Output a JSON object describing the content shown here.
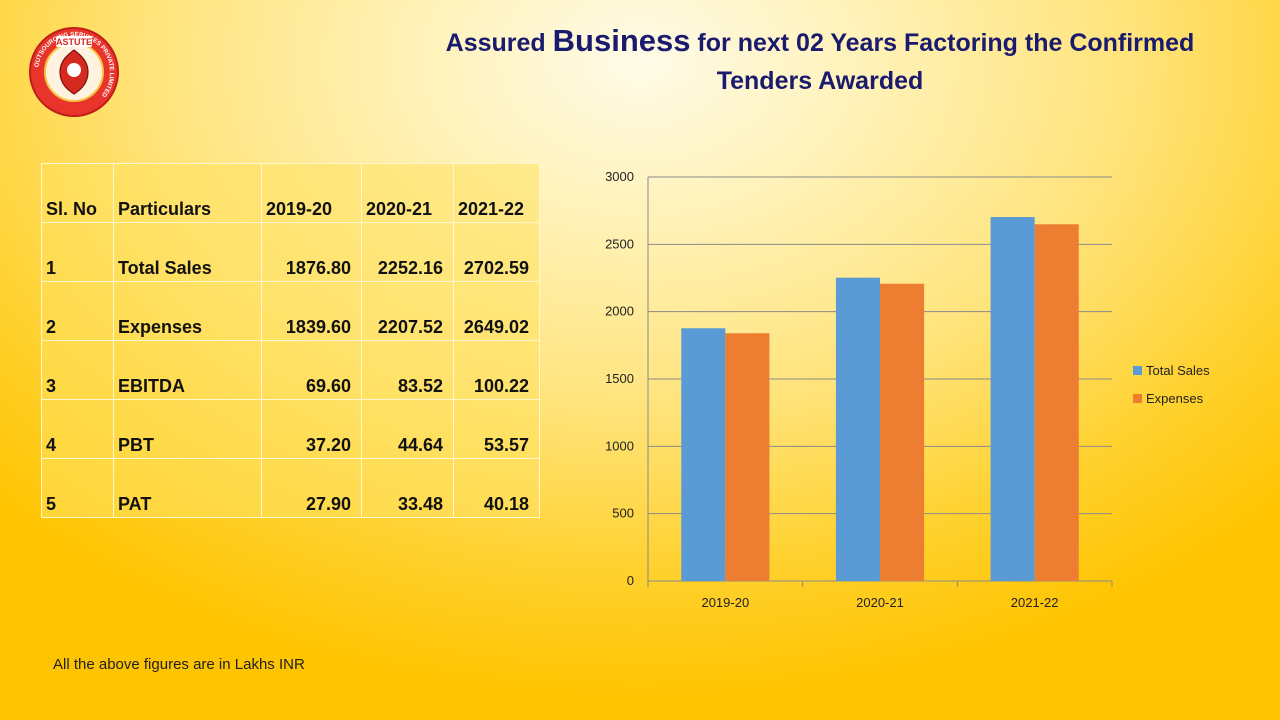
{
  "slide": {
    "title_pre": "Assured ",
    "title_big": "Business",
    "title_post": " for next 02 Years Factoring the Confirmed",
    "title_line2": "Tenders Awarded",
    "logo_text": "ASTUTE",
    "logo_ring_text": "OUTSOURCING SERVICES PRIVATE LIMITED",
    "footnote": "All the above figures are in Lakhs INR"
  },
  "table": {
    "headers": [
      "Sl. No",
      "Particulars",
      "2019-20",
      "2020-21",
      "2021-22"
    ],
    "rows": [
      [
        "1",
        "Total  Sales",
        "1876.80",
        "2252.16",
        "2702.59"
      ],
      [
        "2",
        "Expenses",
        "1839.60",
        "2207.52",
        "2649.02"
      ],
      [
        "3",
        "EBITDA",
        "69.60",
        "83.52",
        "100.22"
      ],
      [
        "4",
        "PBT",
        "37.20",
        "44.64",
        "53.57"
      ],
      [
        "5",
        "PAT",
        "27.90",
        "33.48",
        "40.18"
      ]
    ]
  },
  "chart_data": {
    "type": "bar",
    "categories": [
      "2019-20",
      "2020-21",
      "2021-22"
    ],
    "series": [
      {
        "name": "Total Sales",
        "values": [
          1876.8,
          2252.16,
          2702.59
        ],
        "color": "#5b9bd5"
      },
      {
        "name": "Expenses",
        "values": [
          1839.6,
          2207.52,
          2649.02
        ],
        "color": "#ed7d31"
      }
    ],
    "ylim": [
      0,
      3000
    ],
    "yticks": [
      0,
      500,
      1000,
      1500,
      2000,
      2500,
      3000
    ],
    "grid": true,
    "legend": "right",
    "title": "",
    "xlabel": "",
    "ylabel": ""
  }
}
